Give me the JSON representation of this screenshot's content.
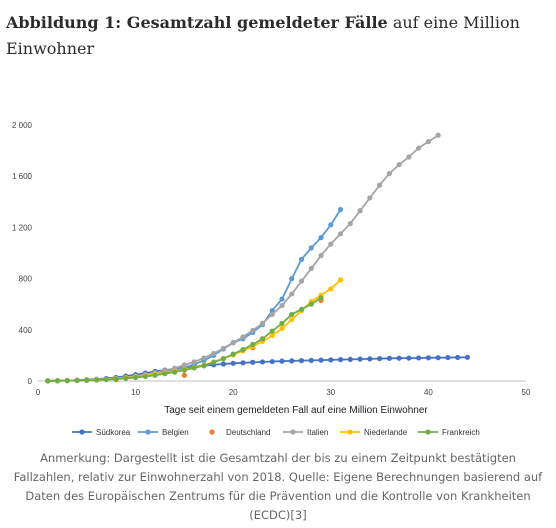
{
  "caption": {
    "label": "Abbildung 1",
    "colon": ": ",
    "bold_title": "Gesamtzahl gemeldeter Fälle",
    "rest_title": " auf eine Million Einwohner"
  },
  "note": "Anmerkung: Dargestellt ist die Gesamtzahl der bis zu einem Zeitpunkt bestätigten Fallzahlen, relativ zur Einwohnerzahl von 2018. Quelle: Eigene Berechnungen basierend auf Daten des Europäischen Zentrums für die Prävention und die Kontrolle von Krankheiten (ECDC)[3]",
  "chart_data": {
    "type": "line",
    "title": "",
    "xlabel": "Tage seit einem gemeldeten Fall auf eine Million Einwohner",
    "ylabel": "",
    "xlim": [
      0,
      50
    ],
    "ylim": [
      0,
      2000
    ],
    "xticks": [
      0,
      10,
      20,
      30,
      40,
      50
    ],
    "yticks": [
      0,
      400,
      800,
      1200,
      1600,
      2000
    ],
    "ytick_labels": [
      "0",
      "400",
      "800",
      "1 200",
      "1 600",
      "2 000"
    ],
    "grid": false,
    "legend_position": "bottom",
    "series": [
      {
        "name": "Südkorea",
        "color": "#4472C4",
        "line": true,
        "x": [
          1,
          2,
          3,
          4,
          5,
          6,
          7,
          8,
          9,
          10,
          11,
          12,
          13,
          14,
          15,
          16,
          17,
          18,
          19,
          20,
          21,
          22,
          23,
          24,
          25,
          26,
          27,
          28,
          29,
          30,
          31,
          32,
          33,
          34,
          35,
          36,
          37,
          38,
          39,
          40,
          41,
          42,
          43,
          44
        ],
        "y": [
          1,
          2,
          4,
          7,
          10,
          14,
          20,
          28,
          38,
          50,
          62,
          75,
          85,
          95,
          105,
          112,
          120,
          127,
          133,
          138,
          142,
          146,
          149,
          152,
          155,
          157,
          159,
          161,
          163,
          165,
          167,
          169,
          171,
          173,
          175,
          177,
          178,
          179,
          180,
          181,
          182,
          183,
          184,
          185
        ]
      },
      {
        "name": "Belgien",
        "color": "#5B9BD5",
        "line": true,
        "x": [
          1,
          2,
          3,
          4,
          5,
          6,
          7,
          8,
          9,
          10,
          11,
          12,
          13,
          14,
          15,
          16,
          17,
          18,
          19,
          20,
          21,
          22,
          23,
          24,
          25,
          26,
          27,
          28,
          29,
          30,
          31
        ],
        "y": [
          1,
          2,
          3,
          5,
          7,
          10,
          14,
          18,
          24,
          32,
          42,
          55,
          68,
          85,
          105,
          130,
          160,
          200,
          250,
          300,
          330,
          380,
          440,
          550,
          640,
          800,
          950,
          1040,
          1120,
          1220,
          1340
        ]
      },
      {
        "name": "Deutschland",
        "color": "#ED7D31",
        "line": false,
        "x": [
          8,
          15,
          22,
          29
        ],
        "y": [
          10,
          45,
          260,
          630
        ]
      },
      {
        "name": "Italien",
        "color": "#A5A5A5",
        "line": true,
        "x": [
          1,
          2,
          3,
          4,
          5,
          6,
          7,
          8,
          9,
          10,
          11,
          12,
          13,
          14,
          15,
          16,
          17,
          18,
          19,
          20,
          21,
          22,
          23,
          24,
          25,
          26,
          27,
          28,
          29,
          30,
          31,
          32,
          33,
          34,
          35,
          36,
          37,
          38,
          39,
          40,
          41
        ],
        "y": [
          1,
          2,
          3,
          5,
          7,
          10,
          14,
          20,
          28,
          38,
          50,
          65,
          80,
          100,
          125,
          150,
          180,
          215,
          255,
          300,
          345,
          395,
          450,
          520,
          590,
          680,
          780,
          880,
          980,
          1070,
          1150,
          1230,
          1330,
          1430,
          1530,
          1620,
          1690,
          1750,
          1820,
          1870,
          1920
        ]
      },
      {
        "name": "Niederlande",
        "color": "#FFC000",
        "line": true,
        "x": [
          1,
          2,
          3,
          4,
          5,
          6,
          7,
          8,
          9,
          10,
          11,
          12,
          13,
          14,
          15,
          16,
          17,
          18,
          19,
          20,
          21,
          22,
          23,
          24,
          25,
          26,
          27,
          28,
          29,
          30,
          31
        ],
        "y": [
          1,
          2,
          3,
          5,
          7,
          10,
          13,
          18,
          24,
          32,
          42,
          52,
          63,
          76,
          90,
          105,
          125,
          150,
          175,
          205,
          235,
          270,
          310,
          355,
          410,
          480,
          550,
          620,
          670,
          720,
          790
        ]
      },
      {
        "name": "Frankreich",
        "color": "#70AD47",
        "line": true,
        "x": [
          1,
          2,
          3,
          4,
          5,
          6,
          7,
          8,
          9,
          10,
          11,
          12,
          13,
          14,
          15,
          16,
          17,
          18,
          19,
          20,
          21,
          22,
          23,
          24,
          25,
          26,
          27,
          28,
          29
        ],
        "y": [
          1,
          2,
          3,
          4,
          6,
          8,
          11,
          15,
          20,
          27,
          35,
          45,
          57,
          70,
          85,
          102,
          120,
          145,
          175,
          210,
          245,
          285,
          330,
          390,
          450,
          520,
          560,
          600,
          650
        ]
      }
    ]
  }
}
